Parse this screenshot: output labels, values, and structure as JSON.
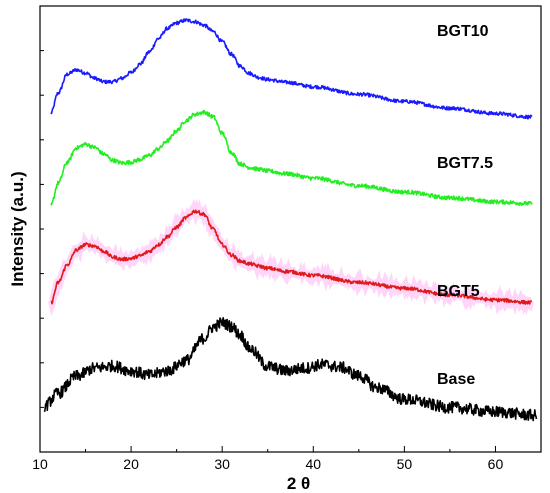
{
  "chart_data": {
    "type": "line",
    "xlabel": "2 θ",
    "ylabel": "Intensity (a.u.)",
    "xlim": [
      10,
      65
    ],
    "x_ticks": [
      "10",
      "20",
      "30",
      "40",
      "50",
      "60"
    ],
    "y_ticks_labeled": false,
    "grid": false,
    "legend": "labels placed beside each curve (right side)",
    "stacked_offset": true,
    "series": [
      {
        "name": "BGT10",
        "color": "#1a1aff",
        "x": [
          11.2,
          12,
          13,
          14,
          15,
          16,
          17,
          18,
          19,
          20,
          21,
          22,
          23,
          24,
          25,
          26,
          27,
          28,
          29,
          30,
          31,
          32,
          33,
          34,
          35,
          37,
          40,
          45,
          50,
          55,
          60,
          64
        ],
        "y": [
          0.76,
          0.805,
          0.847,
          0.857,
          0.85,
          0.838,
          0.83,
          0.83,
          0.838,
          0.851,
          0.87,
          0.897,
          0.927,
          0.95,
          0.962,
          0.968,
          0.965,
          0.957,
          0.943,
          0.92,
          0.892,
          0.865,
          0.849,
          0.84,
          0.835,
          0.829,
          0.819,
          0.802,
          0.786,
          0.771,
          0.759,
          0.751
        ]
      },
      {
        "name": "BGT7.5",
        "color": "#22ee22",
        "x": [
          11.2,
          12,
          13,
          14,
          15,
          16,
          17,
          18,
          19,
          20,
          21,
          22,
          23,
          24,
          25,
          26,
          27,
          28,
          29,
          30,
          31,
          32,
          33,
          34,
          35,
          37,
          40,
          45,
          50,
          55,
          60,
          64
        ],
        "y": [
          0.553,
          0.603,
          0.65,
          0.682,
          0.69,
          0.683,
          0.668,
          0.654,
          0.648,
          0.65,
          0.656,
          0.665,
          0.68,
          0.698,
          0.72,
          0.743,
          0.757,
          0.762,
          0.752,
          0.715,
          0.672,
          0.646,
          0.638,
          0.634,
          0.63,
          0.624,
          0.614,
          0.597,
          0.583,
          0.57,
          0.561,
          0.557
        ]
      },
      {
        "name": "BGT5",
        "color": "#e01a1a",
        "x": [
          11.2,
          12,
          13,
          14,
          15,
          16,
          17,
          18,
          19,
          20,
          21,
          22,
          23,
          24,
          25,
          26,
          27,
          28,
          29,
          30,
          31,
          32,
          33,
          34,
          35,
          37,
          40,
          45,
          50,
          55,
          60,
          64
        ],
        "y": [
          0.334,
          0.38,
          0.42,
          0.453,
          0.465,
          0.462,
          0.45,
          0.437,
          0.432,
          0.434,
          0.44,
          0.45,
          0.465,
          0.483,
          0.504,
          0.525,
          0.54,
          0.533,
          0.5,
          0.465,
          0.442,
          0.428,
          0.422,
          0.417,
          0.412,
          0.405,
          0.396,
          0.38,
          0.367,
          0.352,
          0.341,
          0.335
        ]
      },
      {
        "name": "Base",
        "color": "#000000",
        "x": [
          10.5,
          12,
          14,
          16,
          18,
          20,
          22,
          24,
          26,
          28,
          29,
          30,
          31,
          32,
          33,
          35,
          37,
          39,
          41,
          43,
          45,
          47,
          50,
          55,
          60,
          64.5
        ],
        "y": [
          0.103,
          0.132,
          0.17,
          0.188,
          0.193,
          0.182,
          0.172,
          0.182,
          0.205,
          0.255,
          0.28,
          0.29,
          0.282,
          0.262,
          0.232,
          0.192,
          0.182,
          0.188,
          0.196,
          0.19,
          0.171,
          0.144,
          0.118,
          0.1,
          0.09,
          0.082
        ]
      }
    ]
  }
}
